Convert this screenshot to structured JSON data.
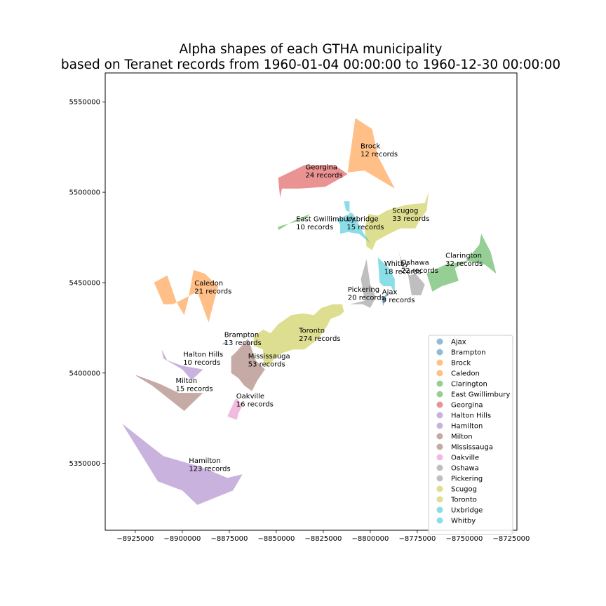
{
  "chart_data": {
    "type": "map",
    "title_lines": [
      "Alpha shapes of each GTHA municipality",
      "based on Teranet records from 1960-01-04 00:00:00 to 1960-12-30 00:00:00"
    ],
    "xlim": [
      -8941000,
      -8722000
    ],
    "ylim": [
      5313000,
      5566000
    ],
    "x_ticks": [
      -8925000,
      -8900000,
      -8875000,
      -8850000,
      -8825000,
      -8800000,
      -8775000,
      -8750000,
      -8725000
    ],
    "x_tick_labels": [
      "−8925000",
      "−8900000",
      "−8875000",
      "−8850000",
      "−8825000",
      "−8800000",
      "−8775000",
      "−8750000",
      "−8725000"
    ],
    "y_ticks": [
      5350000,
      5400000,
      5450000,
      5500000,
      5550000
    ],
    "y_tick_labels": [
      "5350000",
      "5400000",
      "5450000",
      "5500000",
      "5550000"
    ],
    "legend_position": "lower-right",
    "municipalities": [
      {
        "name": "Ajax",
        "records_label": "9 records",
        "color": "#1f77b4",
        "label_pos": [
          -8793700,
          5443500
        ],
        "polygon": [
          [
            -8794000,
            5441000
          ],
          [
            -8791000,
            5444000
          ],
          [
            -8793000,
            5437000
          ]
        ]
      },
      {
        "name": "Brampton",
        "records_label": "13 records",
        "color": "#1f77b4",
        "label_pos": [
          -8877700,
          5420000
        ],
        "polygon": [
          [
            -8879000,
            5416000
          ],
          [
            -8876000,
            5418000
          ],
          [
            -8876500,
            5415500
          ]
        ]
      },
      {
        "name": "Brock",
        "records_label": "12 records",
        "color": "#ff7f0e",
        "label_pos": [
          -8805200,
          5524200
        ],
        "polygon": [
          [
            -8808000,
            5541000
          ],
          [
            -8799000,
            5535000
          ],
          [
            -8796000,
            5520000
          ],
          [
            -8787000,
            5502000
          ],
          [
            -8803000,
            5512000
          ],
          [
            -8812000,
            5511000
          ]
        ]
      },
      {
        "name": "Caledon",
        "records_label": "21 records",
        "color": "#ff7f0e",
        "label_pos": [
          -8893500,
          5448500
        ],
        "polygon": [
          [
            -8915000,
            5450000
          ],
          [
            -8908000,
            5454000
          ],
          [
            -8903000,
            5439000
          ],
          [
            -8899000,
            5432000
          ],
          [
            -8897000,
            5440000
          ],
          [
            -8894000,
            5457000
          ],
          [
            -8888000,
            5455000
          ],
          [
            -8881000,
            5448000
          ],
          [
            -8886000,
            5428000
          ],
          [
            -8892000,
            5445000
          ],
          [
            -8905000,
            5438000
          ],
          [
            -8910000,
            5438000
          ]
        ]
      },
      {
        "name": "Clarington",
        "records_label": "32 records",
        "color": "#2ca02c",
        "label_pos": [
          -8760000,
          5463800
        ],
        "polygon": [
          [
            -8770000,
            5455000
          ],
          [
            -8760000,
            5460000
          ],
          [
            -8749000,
            5462000
          ],
          [
            -8742000,
            5471000
          ],
          [
            -8741000,
            5477000
          ],
          [
            -8736000,
            5467000
          ],
          [
            -8733000,
            5455000
          ],
          [
            -8739000,
            5460000
          ],
          [
            -8748000,
            5462000
          ],
          [
            -8755000,
            5458000
          ],
          [
            -8753000,
            5451000
          ],
          [
            -8762000,
            5448000
          ],
          [
            -8767000,
            5445000
          ]
        ]
      },
      {
        "name": "East Gwillimbury",
        "records_label": "10 records",
        "color": "#2ca02c",
        "label_pos": [
          -8839500,
          5484000
        ],
        "polygon": [
          [
            -8849000,
            5479000
          ],
          [
            -8841000,
            5484000
          ],
          [
            -8832000,
            5488000
          ],
          [
            -8835000,
            5485000
          ],
          [
            -8849000,
            5481000
          ]
        ]
      },
      {
        "name": "Georgina",
        "records_label": "24 records",
        "color": "#d62728",
        "label_pos": [
          -8834500,
          5512600
        ],
        "polygon": [
          [
            -8849000,
            5508000
          ],
          [
            -8843000,
            5511000
          ],
          [
            -8835000,
            5515000
          ],
          [
            -8819000,
            5515000
          ],
          [
            -8812000,
            5510000
          ],
          [
            -8824000,
            5503000
          ],
          [
            -8838000,
            5502000
          ],
          [
            -8847000,
            5502000
          ],
          [
            -8848000,
            5497000
          ]
        ]
      },
      {
        "name": "Halton Hills",
        "records_label": "10 records",
        "color": "#9467bd",
        "label_pos": [
          -8899500,
          5409000
        ],
        "polygon": [
          [
            -8911000,
            5413000
          ],
          [
            -8908000,
            5407000
          ],
          [
            -8900000,
            5404000
          ],
          [
            -8889000,
            5402000
          ],
          [
            -8895000,
            5396000
          ],
          [
            -8900000,
            5402000
          ],
          [
            -8910000,
            5408000
          ]
        ]
      },
      {
        "name": "Hamilton",
        "records_label": "123 records",
        "color": "#9467bd",
        "label_pos": [
          -8896500,
          5350300
        ],
        "polygon": [
          [
            -8932000,
            5372000
          ],
          [
            -8910000,
            5354000
          ],
          [
            -8890000,
            5348000
          ],
          [
            -8876000,
            5342000
          ],
          [
            -8868000,
            5344000
          ],
          [
            -8873000,
            5335000
          ],
          [
            -8892000,
            5327000
          ],
          [
            -8900000,
            5335000
          ],
          [
            -8913000,
            5340000
          ]
        ]
      },
      {
        "name": "Milton",
        "records_label": "15 records",
        "color": "#8c564b",
        "label_pos": [
          -8903500,
          5394500
        ],
        "polygon": [
          [
            -8925000,
            5399000
          ],
          [
            -8912000,
            5394000
          ],
          [
            -8902000,
            5389000
          ],
          [
            -8889000,
            5389000
          ],
          [
            -8899000,
            5379000
          ],
          [
            -8916000,
            5393000
          ],
          [
            -8924000,
            5398000
          ]
        ]
      },
      {
        "name": "Mississauga",
        "records_label": "53 records",
        "color": "#8c564b",
        "label_pos": [
          -8865000,
          5408000
        ],
        "polygon": [
          [
            -8871000,
            5412000
          ],
          [
            -8865000,
            5419000
          ],
          [
            -8861000,
            5407000
          ],
          [
            -8856000,
            5402000
          ],
          [
            -8860000,
            5396000
          ],
          [
            -8863000,
            5390000
          ],
          [
            -8867000,
            5393000
          ],
          [
            -8870000,
            5397000
          ],
          [
            -8874000,
            5400000
          ],
          [
            -8874000,
            5409000
          ]
        ]
      },
      {
        "name": "Oakville",
        "records_label": "16 records",
        "color": "#e377c2",
        "label_pos": [
          -8871300,
          5386000
        ],
        "polygon": [
          [
            -8871000,
            5386000
          ],
          [
            -8868000,
            5382000
          ],
          [
            -8870000,
            5378000
          ],
          [
            -8871000,
            5374000
          ],
          [
            -8876000,
            5376000
          ],
          [
            -8872000,
            5385000
          ]
        ]
      },
      {
        "name": "Oshawa",
        "records_label": "22 records",
        "color": "#7f7f7f",
        "label_pos": [
          -8783600,
          5459900
        ],
        "polygon": [
          [
            -8783000,
            5458000
          ],
          [
            -8779000,
            5454000
          ],
          [
            -8776000,
            5455000
          ],
          [
            -8771000,
            5449000
          ],
          [
            -8773000,
            5443000
          ],
          [
            -8778000,
            5443000
          ],
          [
            -8780000,
            5455000
          ],
          [
            -8784000,
            5464000
          ],
          [
            -8785000,
            5468000
          ]
        ]
      },
      {
        "name": "Pickering",
        "records_label": "20 records",
        "color": "#7f7f7f",
        "label_pos": [
          -8812000,
          5445000
        ],
        "polygon": [
          [
            -8803000,
            5440000
          ],
          [
            -8805000,
            5452000
          ],
          [
            -8802000,
            5463000
          ],
          [
            -8800000,
            5449000
          ],
          [
            -8797000,
            5442000
          ],
          [
            -8800000,
            5436000
          ],
          [
            -8804000,
            5438000
          ],
          [
            -8811000,
            5438000
          ]
        ]
      },
      {
        "name": "Scugog",
        "records_label": "33 records",
        "color": "#bcbd22",
        "label_pos": [
          -8788300,
          5488500
        ],
        "polygon": [
          [
            -8796000,
            5487000
          ],
          [
            -8791000,
            5490000
          ],
          [
            -8781000,
            5493000
          ],
          [
            -8771000,
            5494000
          ],
          [
            -8769000,
            5500000
          ],
          [
            -8770000,
            5490000
          ],
          [
            -8774000,
            5484000
          ],
          [
            -8776000,
            5480000
          ],
          [
            -8784000,
            5480000
          ],
          [
            -8790000,
            5477000
          ],
          [
            -8797000,
            5473000
          ],
          [
            -8799000,
            5468000
          ],
          [
            -8802000,
            5470000
          ],
          [
            -8803000,
            5480000
          ],
          [
            -8801000,
            5488000
          ]
        ]
      },
      {
        "name": "Toronto",
        "records_label": "274 records",
        "color": "#bcbd22",
        "label_pos": [
          -8838000,
          5422200
        ],
        "polygon": [
          [
            -8862000,
            5420000
          ],
          [
            -8857000,
            5424000
          ],
          [
            -8853000,
            5422000
          ],
          [
            -8849000,
            5427000
          ],
          [
            -8842000,
            5432000
          ],
          [
            -8836000,
            5433000
          ],
          [
            -8830000,
            5432000
          ],
          [
            -8826000,
            5436000
          ],
          [
            -8820000,
            5438000
          ],
          [
            -8815000,
            5438000
          ],
          [
            -8814000,
            5434000
          ],
          [
            -8816000,
            5432000
          ],
          [
            -8821000,
            5430000
          ],
          [
            -8823000,
            5426000
          ],
          [
            -8827000,
            5420000
          ],
          [
            -8830000,
            5417000
          ],
          [
            -8835000,
            5413000
          ],
          [
            -8841000,
            5413000
          ],
          [
            -8847000,
            5411000
          ],
          [
            -8851000,
            5408000
          ],
          [
            -8855000,
            5403000
          ],
          [
            -8857000,
            5407000
          ],
          [
            -8857000,
            5413000
          ],
          [
            -8862000,
            5415000
          ]
        ]
      },
      {
        "name": "Uxbridge",
        "records_label": "15 records",
        "color": "#17becf",
        "label_pos": [
          -8812500,
          5484000
        ],
        "polygon": [
          [
            -8818000,
            5485000
          ],
          [
            -8811000,
            5488000
          ],
          [
            -8811000,
            5495000
          ],
          [
            -8814000,
            5495000
          ],
          [
            -8813000,
            5490000
          ],
          [
            -8809000,
            5488000
          ],
          [
            -8804000,
            5478000
          ],
          [
            -8800000,
            5472000
          ],
          [
            -8806000,
            5477000
          ],
          [
            -8812000,
            5478000
          ],
          [
            -8816000,
            5477000
          ],
          [
            -8816000,
            5482000
          ]
        ]
      },
      {
        "name": "Whitby",
        "records_label": "18 records",
        "color": "#17becf",
        "label_pos": [
          -8792600,
          5459300
        ],
        "polygon": [
          [
            -8796000,
            5464000
          ],
          [
            -8790000,
            5458000
          ],
          [
            -8787000,
            5452000
          ],
          [
            -8787000,
            5444000
          ],
          [
            -8789000,
            5448000
          ],
          [
            -8793000,
            5448000
          ],
          [
            -8795000,
            5450000
          ]
        ]
      }
    ]
  }
}
